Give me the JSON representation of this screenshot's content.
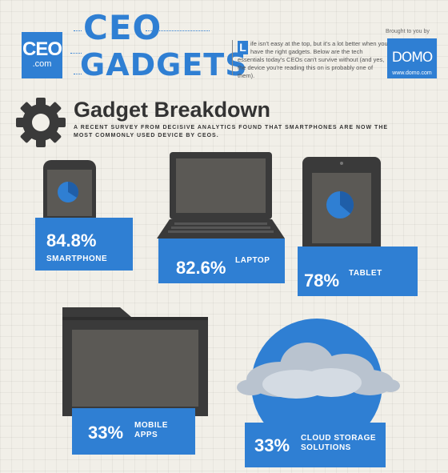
{
  "header": {
    "logo_main": "CEO",
    "logo_sub": ".com",
    "title_line1": "CEO",
    "title_line2": "GADGETS",
    "intro_dropcap": "L",
    "intro_text": "ife isn't easy at the top, but it's a lot better when you have the right gadgets. Below are the tech essentials today's CEOs can't survive without (and yes, the device you're reading this on is probably one of them).",
    "sponsor_label": "Brought to you by",
    "sponsor_name": "DOMO",
    "sponsor_url": "www.domo.com"
  },
  "section": {
    "title": "Gadget Breakdown",
    "description": "A RECENT SURVEY FROM DECISIVE ANALYTICS FOUND THAT SMARTPHONES ARE NOW THE MOST COMMONLY USED DEVICE BY CEOS."
  },
  "stats": [
    {
      "pct": "84.8%",
      "label": "SMARTPHONE",
      "icon": "smartphone-icon"
    },
    {
      "pct": "82.6%",
      "label": "LAPTOP",
      "icon": "laptop-icon"
    },
    {
      "pct": "78%",
      "label": "TABLET",
      "icon": "tablet-icon"
    },
    {
      "pct": "33%",
      "label_line1": "MOBILE",
      "label_line2": "APPS",
      "icon": "folder-icon"
    },
    {
      "pct": "33%",
      "label_line1": "CLOUD STORAGE",
      "label_line2": "SOLUTIONS",
      "icon": "cloud-icon"
    }
  ],
  "colors": {
    "accent": "#2f7fd3",
    "device": "#3a3a3a",
    "screen": "#5b5955",
    "background": "#f1efe8"
  }
}
